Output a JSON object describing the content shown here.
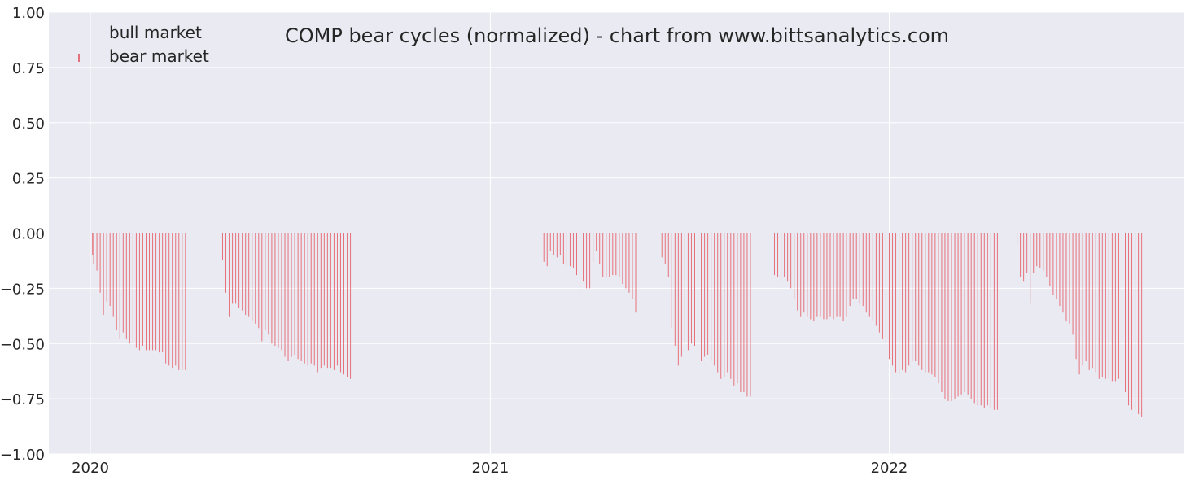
{
  "chart_data": {
    "type": "bar",
    "title": "COMP bear cycles (normalized)  - chart from www.bittsanalytics.com",
    "xlabel": "",
    "ylabel": "",
    "ylim": [
      -1.0,
      1.0
    ],
    "xlim": [
      "2019-11-24",
      "2022-09-28"
    ],
    "yticks": [
      1.0,
      0.75,
      0.5,
      0.25,
      0.0,
      -0.25,
      -0.5,
      -0.75,
      -1.0
    ],
    "ytick_labels": [
      "1.00",
      "0.75",
      "0.50",
      "0.25",
      "0.00",
      "−0.25",
      "−0.50",
      "−0.75",
      "−1.00"
    ],
    "xticks": [
      "2020-01-01",
      "2021-01-01",
      "2022-01-01"
    ],
    "xtick_labels": [
      "2020",
      "2021",
      "2022"
    ],
    "grid": true,
    "legend_position": "top-left",
    "legend": [
      {
        "label": "bull market",
        "color": ""
      },
      {
        "label": "bear market",
        "color": "#e8707a"
      }
    ],
    "colors": {
      "bear": "#e8707a",
      "background": "#eaeaf2",
      "grid": "#ffffff"
    },
    "series": [
      {
        "name": "bear market",
        "segments": [
          {
            "x": [
              "2020-01-03",
              "2020-01-04",
              "2020-01-07",
              "2020-01-10",
              "2020-01-13",
              "2020-01-16",
              "2020-01-19",
              "2020-01-22",
              "2020-01-25",
              "2020-01-28",
              "2020-01-31",
              "2020-02-03",
              "2020-02-06",
              "2020-02-09",
              "2020-02-12",
              "2020-02-15",
              "2020-02-18",
              "2020-02-21",
              "2020-02-24",
              "2020-02-27",
              "2020-03-01",
              "2020-03-04",
              "2020-03-07",
              "2020-03-10",
              "2020-03-13",
              "2020-03-16",
              "2020-03-19",
              "2020-03-22",
              "2020-03-25",
              "2020-03-28"
            ],
            "y": [
              -0.1,
              -0.14,
              -0.17,
              -0.27,
              -0.37,
              -0.31,
              -0.33,
              -0.38,
              -0.44,
              -0.48,
              -0.45,
              -0.48,
              -0.5,
              -0.5,
              -0.52,
              -0.53,
              -0.51,
              -0.53,
              -0.53,
              -0.53,
              -0.53,
              -0.54,
              -0.54,
              -0.59,
              -0.6,
              -0.61,
              -0.6,
              -0.62,
              -0.62,
              -0.62
            ]
          },
          {
            "x": [
              "2020-05-01",
              "2020-05-04",
              "2020-05-07",
              "2020-05-10",
              "2020-05-13",
              "2020-05-16",
              "2020-05-19",
              "2020-05-22",
              "2020-05-25",
              "2020-05-28",
              "2020-05-31",
              "2020-06-03",
              "2020-06-06",
              "2020-06-09",
              "2020-06-12",
              "2020-06-15",
              "2020-06-18",
              "2020-06-21",
              "2020-06-24",
              "2020-06-27",
              "2020-06-30",
              "2020-07-03",
              "2020-07-06",
              "2020-07-09",
              "2020-07-12",
              "2020-07-15",
              "2020-07-18",
              "2020-07-21",
              "2020-07-24",
              "2020-07-27",
              "2020-07-30",
              "2020-08-02",
              "2020-08-05",
              "2020-08-08",
              "2020-08-11",
              "2020-08-14",
              "2020-08-17",
              "2020-08-20",
              "2020-08-23",
              "2020-08-26"
            ],
            "y": [
              -0.12,
              -0.27,
              -0.38,
              -0.32,
              -0.32,
              -0.34,
              -0.35,
              -0.37,
              -0.38,
              -0.4,
              -0.41,
              -0.43,
              -0.49,
              -0.44,
              -0.46,
              -0.5,
              -0.51,
              -0.52,
              -0.53,
              -0.56,
              -0.58,
              -0.56,
              -0.55,
              -0.57,
              -0.58,
              -0.59,
              -0.6,
              -0.59,
              -0.6,
              -0.63,
              -0.61,
              -0.6,
              -0.61,
              -0.61,
              -0.62,
              -0.6,
              -0.63,
              -0.64,
              -0.65,
              -0.66
            ]
          },
          {
            "x": [
              "2021-02-19",
              "2021-02-22",
              "2021-02-25",
              "2021-02-28",
              "2021-03-03",
              "2021-03-06",
              "2021-03-09",
              "2021-03-12",
              "2021-03-15",
              "2021-03-18",
              "2021-03-21",
              "2021-03-24",
              "2021-03-27",
              "2021-03-30",
              "2021-04-02",
              "2021-04-05",
              "2021-04-08",
              "2021-04-11",
              "2021-04-14",
              "2021-04-17",
              "2021-04-20",
              "2021-04-23",
              "2021-04-26",
              "2021-04-29",
              "2021-05-02",
              "2021-05-05",
              "2021-05-08",
              "2021-05-11",
              "2021-05-14"
            ],
            "y": [
              -0.13,
              -0.15,
              -0.08,
              -0.1,
              -0.11,
              -0.1,
              -0.14,
              -0.15,
              -0.15,
              -0.16,
              -0.19,
              -0.29,
              -0.22,
              -0.25,
              -0.25,
              -0.13,
              -0.08,
              -0.14,
              -0.2,
              -0.2,
              -0.2,
              -0.19,
              -0.19,
              -0.2,
              -0.23,
              -0.25,
              -0.27,
              -0.3,
              -0.36
            ]
          },
          {
            "x": [
              "2021-06-07",
              "2021-06-10",
              "2021-06-13",
              "2021-06-16",
              "2021-06-19",
              "2021-06-22",
              "2021-06-25",
              "2021-06-28",
              "2021-07-01",
              "2021-07-04",
              "2021-07-07",
              "2021-07-10",
              "2021-07-13",
              "2021-07-16",
              "2021-07-19",
              "2021-07-22",
              "2021-07-25",
              "2021-07-28",
              "2021-07-31",
              "2021-08-03",
              "2021-08-06",
              "2021-08-09",
              "2021-08-12",
              "2021-08-15",
              "2021-08-18",
              "2021-08-21",
              "2021-08-24",
              "2021-08-27"
            ],
            "y": [
              -0.11,
              -0.14,
              -0.2,
              -0.43,
              -0.51,
              -0.6,
              -0.56,
              -0.5,
              -0.53,
              -0.5,
              -0.51,
              -0.53,
              -0.58,
              -0.56,
              -0.55,
              -0.58,
              -0.6,
              -0.63,
              -0.66,
              -0.65,
              -0.63,
              -0.66,
              -0.69,
              -0.68,
              -0.72,
              -0.72,
              -0.74,
              -0.74
            ]
          },
          {
            "x": [
              "2021-09-18",
              "2021-09-21",
              "2021-09-24",
              "2021-09-27",
              "2021-09-30",
              "2021-10-03",
              "2021-10-06",
              "2021-10-09",
              "2021-10-12",
              "2021-10-15",
              "2021-10-18",
              "2021-10-21",
              "2021-10-24",
              "2021-10-27",
              "2021-10-30",
              "2021-11-02",
              "2021-11-05",
              "2021-11-08",
              "2021-11-11",
              "2021-11-14",
              "2021-11-17",
              "2021-11-20",
              "2021-11-23",
              "2021-11-26",
              "2021-11-29",
              "2021-12-02",
              "2021-12-05",
              "2021-12-08",
              "2021-12-11",
              "2021-12-14",
              "2021-12-17",
              "2021-12-20",
              "2021-12-23",
              "2021-12-26",
              "2021-12-29",
              "2022-01-01",
              "2022-01-04",
              "2022-01-07",
              "2022-01-10",
              "2022-01-13",
              "2022-01-16",
              "2022-01-19",
              "2022-01-22",
              "2022-01-25",
              "2022-01-28",
              "2022-01-31",
              "2022-02-03",
              "2022-02-06",
              "2022-02-09",
              "2022-02-12",
              "2022-02-15",
              "2022-02-18",
              "2022-02-21",
              "2022-02-24",
              "2022-02-27",
              "2022-03-02",
              "2022-03-05",
              "2022-03-08",
              "2022-03-11",
              "2022-03-14",
              "2022-03-17",
              "2022-03-20",
              "2022-03-23",
              "2022-03-26",
              "2022-03-29",
              "2022-04-01",
              "2022-04-04",
              "2022-04-07",
              "2022-04-10"
            ],
            "y": [
              -0.19,
              -0.2,
              -0.22,
              -0.2,
              -0.22,
              -0.25,
              -0.3,
              -0.35,
              -0.38,
              -0.36,
              -0.38,
              -0.39,
              -0.4,
              -0.38,
              -0.38,
              -0.39,
              -0.39,
              -0.38,
              -0.39,
              -0.38,
              -0.38,
              -0.4,
              -0.38,
              -0.33,
              -0.3,
              -0.3,
              -0.32,
              -0.33,
              -0.36,
              -0.38,
              -0.4,
              -0.42,
              -0.45,
              -0.48,
              -0.52,
              -0.57,
              -0.6,
              -0.63,
              -0.64,
              -0.62,
              -0.63,
              -0.6,
              -0.58,
              -0.58,
              -0.6,
              -0.62,
              -0.63,
              -0.63,
              -0.64,
              -0.65,
              -0.68,
              -0.72,
              -0.75,
              -0.76,
              -0.76,
              -0.75,
              -0.74,
              -0.73,
              -0.72,
              -0.73,
              -0.75,
              -0.77,
              -0.78,
              -0.78,
              -0.79,
              -0.78,
              -0.79,
              -0.8,
              -0.8
            ]
          },
          {
            "x": [
              "2022-04-28",
              "2022-05-01",
              "2022-05-04",
              "2022-05-07",
              "2022-05-10",
              "2022-05-13",
              "2022-05-16",
              "2022-05-19",
              "2022-05-22",
              "2022-05-25",
              "2022-05-28",
              "2022-05-31",
              "2022-06-03",
              "2022-06-06",
              "2022-06-09",
              "2022-06-12",
              "2022-06-15",
              "2022-06-18",
              "2022-06-21",
              "2022-06-24",
              "2022-06-27",
              "2022-06-30",
              "2022-07-03",
              "2022-07-06",
              "2022-07-09",
              "2022-07-12",
              "2022-07-15",
              "2022-07-18",
              "2022-07-21",
              "2022-07-24",
              "2022-07-27",
              "2022-07-30",
              "2022-08-02",
              "2022-08-05",
              "2022-08-08",
              "2022-08-11",
              "2022-08-14",
              "2022-08-17",
              "2022-08-20"
            ],
            "y": [
              -0.05,
              -0.2,
              -0.22,
              -0.18,
              -0.32,
              -0.18,
              -0.15,
              -0.16,
              -0.17,
              -0.2,
              -0.24,
              -0.28,
              -0.3,
              -0.33,
              -0.36,
              -0.4,
              -0.41,
              -0.46,
              -0.57,
              -0.64,
              -0.6,
              -0.58,
              -0.62,
              -0.61,
              -0.63,
              -0.66,
              -0.65,
              -0.66,
              -0.66,
              -0.67,
              -0.67,
              -0.66,
              -0.68,
              -0.72,
              -0.78,
              -0.8,
              -0.8,
              -0.82,
              -0.83
            ]
          }
        ]
      }
    ]
  }
}
